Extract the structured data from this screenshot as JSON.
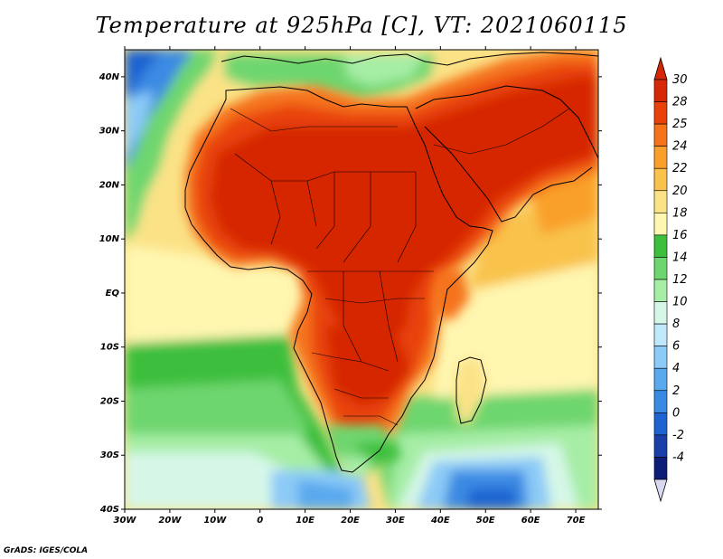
{
  "title": "Temperature at 925hPa [C], VT: 2021060115",
  "credit": "GrADS: IGES/COLA",
  "lon_ticks": [
    "30W",
    "20W",
    "10W",
    "0",
    "10E",
    "20E",
    "30E",
    "40E",
    "50E",
    "60E",
    "70E"
  ],
  "lat_ticks": [
    "40N",
    "30N",
    "20N",
    "10N",
    "EQ",
    "10S",
    "20S",
    "30S",
    "40S"
  ],
  "colorbar": {
    "labels": [
      "30",
      "28",
      "25",
      "24",
      "22",
      "20",
      "18",
      "16",
      "14",
      "12",
      "10",
      "8",
      "6",
      "4",
      "2",
      "0",
      "-2",
      "-4"
    ],
    "colors": [
      "#d62806",
      "#e8420a",
      "#f5731a",
      "#f9a02c",
      "#f9c24c",
      "#fbe287",
      "#fff6b0",
      "#3dbf3d",
      "#6ed66e",
      "#a6eda6",
      "#d6f7e8",
      "#bfe8fb",
      "#8ccaf7",
      "#5aa9ee",
      "#3a8ae3",
      "#1f63d1",
      "#1840a8",
      "#0e1e78"
    ]
  },
  "map": {
    "lon_range": [
      -30,
      75
    ],
    "lat_range": [
      -40,
      45
    ],
    "colors": {
      "hot": "#d62806",
      "warm": "#e8420a",
      "orange": "#f5731a",
      "amber": "#f9a02c",
      "yellow": "#fbe287",
      "cream": "#fff6b0",
      "green": "#3dbf3d",
      "light_green": "#6ed66e",
      "pale_green": "#a6eda6",
      "pale_blue": "#d6f7e8",
      "light_blue": "#8ccaf7",
      "blue": "#3a8ae3",
      "dark_blue": "#1f63d1"
    }
  }
}
